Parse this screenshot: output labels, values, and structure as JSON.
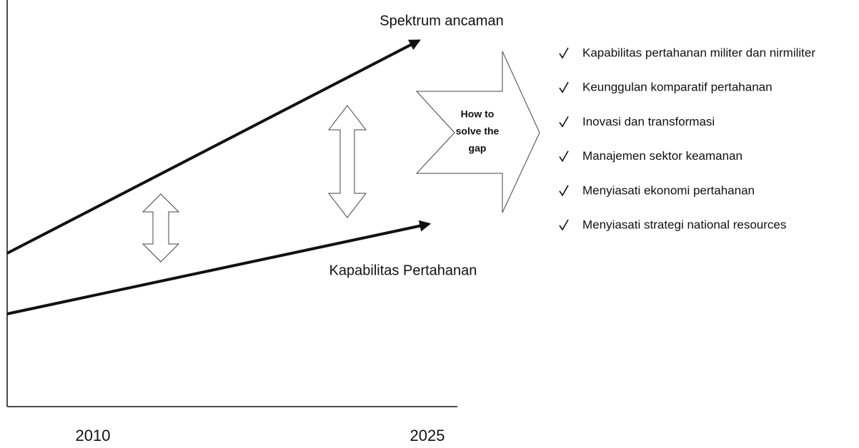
{
  "diagram": {
    "upper_line_label": "Spektrum ancaman",
    "lower_line_label": "Kapabilitas Pertahanan",
    "start_year": "2010",
    "end_year": "2025",
    "arrow_text": [
      "How to",
      "solve the",
      "gap"
    ],
    "solutions": [
      "Kapabilitas pertahanan militer dan nirmiliter",
      "Keunggulan komparatif pertahanan",
      "Inovasi dan transformasi",
      "Manajemen sektor keamanan",
      "Menyiasati ekonomi pertahanan",
      "Menyiasati strategi national resources"
    ]
  }
}
